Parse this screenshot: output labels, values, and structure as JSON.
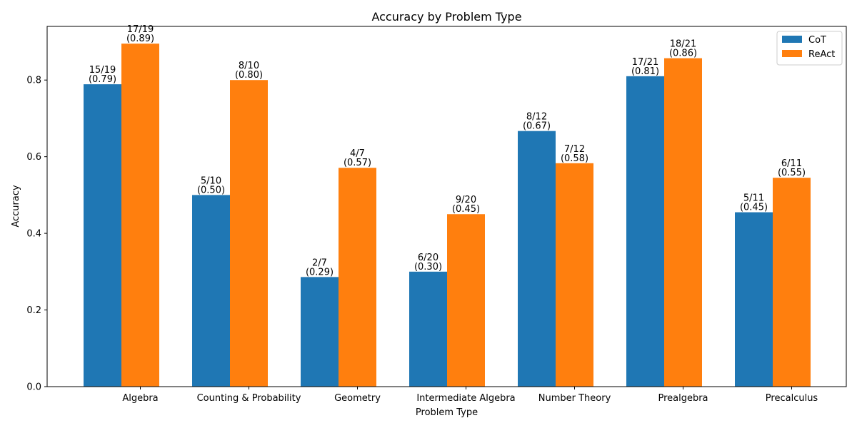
{
  "chart_data": {
    "type": "bar",
    "title": "Accuracy by Problem Type",
    "xlabel": "Problem Type",
    "ylabel": "Accuracy",
    "ylim": [
      0,
      0.94
    ],
    "yticks": [
      "0.0",
      "0.2",
      "0.4",
      "0.6",
      "0.8"
    ],
    "ytick_values": [
      0.0,
      0.2,
      0.4,
      0.6,
      0.8
    ],
    "grid": false,
    "legend_position": "top-right",
    "categories": [
      "Algebra",
      "Counting & Probability",
      "Geometry",
      "Intermediate Algebra",
      "Number Theory",
      "Prealgebra",
      "Precalculus"
    ],
    "series": [
      {
        "name": "CoT",
        "color": "#1f77b4",
        "values": [
          0.789,
          0.5,
          0.286,
          0.3,
          0.667,
          0.81,
          0.455
        ],
        "labels": [
          "15/19",
          "5/10",
          "2/7",
          "6/20",
          "8/12",
          "17/21",
          "5/11"
        ],
        "value_labels": [
          "(0.79)",
          "(0.50)",
          "(0.29)",
          "(0.30)",
          "(0.67)",
          "(0.81)",
          "(0.45)"
        ]
      },
      {
        "name": "ReAct",
        "color": "#ff7f0e",
        "values": [
          0.895,
          0.8,
          0.571,
          0.45,
          0.583,
          0.857,
          0.545
        ],
        "labels": [
          "17/19",
          "8/10",
          "4/7",
          "9/20",
          "7/12",
          "18/21",
          "6/11"
        ],
        "value_labels": [
          "(0.89)",
          "(0.80)",
          "(0.57)",
          "(0.45)",
          "(0.58)",
          "(0.86)",
          "(0.55)"
        ]
      }
    ]
  }
}
